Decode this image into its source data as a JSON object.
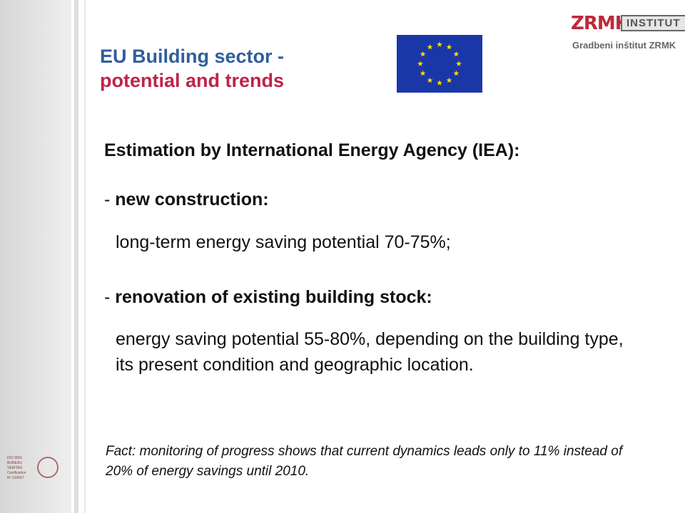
{
  "header": {
    "title_line1": "EU Building sector -",
    "title_line2": "potential and trends"
  },
  "logo": {
    "mark": "ZRMK",
    "tag": "INSTITUT",
    "subtitle": "Gradbeni inštitut ZRMK"
  },
  "body": {
    "heading": "Estimation by International Energy Agency (IEA):",
    "items": [
      {
        "dash": "- ",
        "label": "new construction:",
        "description": "long-term energy saving potential 70-75%;"
      },
      {
        "dash": "- ",
        "label": "renovation of existing building stock:",
        "description": "energy saving potential 55-80%, depending on the building type, its present condition and geographic location."
      }
    ]
  },
  "fact": "Fact: monitoring of progress shows that current dynamics leads only to 11% instead of 20% of energy savings until 2010.",
  "certification": {
    "line1": "ISO 9001",
    "line2": "BUREAU VERITAS",
    "line3": "Certification",
    "line4": "Nº 216567"
  },
  "colors": {
    "title_blue": "#2f5e9e",
    "title_red": "#c0234a",
    "flag_blue": "#1a37a8",
    "star_yellow": "#ffdd00"
  },
  "icons": {
    "flag": "eu-flag-icon",
    "seal": "certification-seal-icon"
  }
}
